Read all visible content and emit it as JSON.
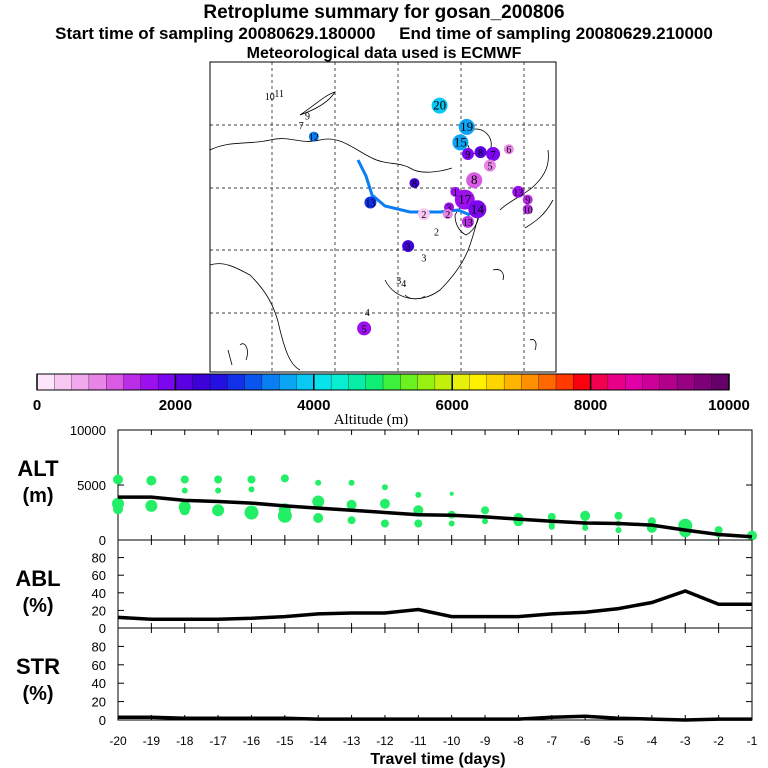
{
  "title": "Retroplume summary for gosan_200806",
  "subtitle_start": "Start time of sampling 20080629.180000",
  "subtitle_end": "End time of sampling 20080629.210000",
  "subtitle2": "Meteorological data used is ECMWF",
  "colorbar": {
    "label": "Altitude (m)",
    "ticks": [
      "0",
      "2000",
      "4000",
      "6000",
      "8000",
      "10000"
    ],
    "colors": [
      "#fde6fb",
      "#f8c8f3",
      "#f2a8ec",
      "#e985e6",
      "#d95be4",
      "#bb2ee8",
      "#9c10ee",
      "#7c06ef",
      "#5a00e3",
      "#3d02d8",
      "#2410e0",
      "#1230e8",
      "#0a55ef",
      "#0a7ff3",
      "#0aa6f5",
      "#0ac8f4",
      "#08e2ec",
      "#07eed0",
      "#08eea6",
      "#0fef75",
      "#3df03b",
      "#6bf020",
      "#98f010",
      "#c2f00a",
      "#e6f00a",
      "#fff000",
      "#ffd500",
      "#ffb400",
      "#ff9000",
      "#ff6800",
      "#ff3a00",
      "#fa0010",
      "#f20050",
      "#ea0088",
      "#e200a8",
      "#cc0098",
      "#b3008c",
      "#980082",
      "#7e0078",
      "#640068"
    ]
  },
  "map_labels": [
    {
      "t": "20",
      "lon": 111.5,
      "lat": 47.5,
      "c": "#0ac8f4",
      "r": 8
    },
    {
      "t": "19",
      "lon": 115.8,
      "lat": 45.3,
      "c": "#0aa6f5",
      "r": 8
    },
    {
      "t": "15",
      "lon": 114.8,
      "lat": 43.7,
      "c": "#0aa6f5",
      "r": 8
    },
    {
      "t": "12",
      "lon": 91.5,
      "lat": 44.3,
      "c": "#0a7ff3",
      "r": 5
    },
    {
      "t": "10",
      "lon": 84.5,
      "lat": 48.5,
      "c": "#ffffff",
      "r": 0
    },
    {
      "t": "11",
      "lon": 86.0,
      "lat": 48.8,
      "c": "#ffffff",
      "r": 0
    },
    {
      "t": "9",
      "lon": 90.5,
      "lat": 46.5,
      "c": "#ffffff",
      "r": 0
    },
    {
      "t": "7",
      "lon": 89.5,
      "lat": 45.5,
      "c": "#ffffff",
      "r": 0
    },
    {
      "t": "8",
      "lon": 107.5,
      "lat": 39.5,
      "c": "#3d02d8",
      "r": 5
    },
    {
      "t": "13",
      "lon": 100.5,
      "lat": 37.5,
      "c": "#1230e8",
      "r": 6
    },
    {
      "t": "2",
      "lon": 109.0,
      "lat": 36.3,
      "c": "#f8c8f3",
      "r": 6
    },
    {
      "t": "3",
      "lon": 106.5,
      "lat": 33.0,
      "c": "#3d02d8",
      "r": 6
    },
    {
      "t": "2",
      "lon": 111.0,
      "lat": 34.5,
      "c": "#ffffff",
      "r": 0
    },
    {
      "t": "3",
      "lon": 109.0,
      "lat": 31.8,
      "c": "#ffffff",
      "r": 0
    },
    {
      "t": "3",
      "lon": 105.0,
      "lat": 29.5,
      "c": "#ffffff",
      "r": 0
    },
    {
      "t": "4",
      "lon": 105.8,
      "lat": 29.2,
      "c": "#ffffff",
      "r": 0
    },
    {
      "t": "4",
      "lon": 100.0,
      "lat": 26.2,
      "c": "#ffffff",
      "r": 0
    },
    {
      "t": "5",
      "lon": 99.5,
      "lat": 24.5,
      "c": "#9c10ee",
      "r": 7
    },
    {
      "t": "9",
      "lon": 116.0,
      "lat": 42.5,
      "c": "#7c06ef",
      "r": 6
    },
    {
      "t": "8",
      "lon": 118.0,
      "lat": 42.7,
      "c": "#5a00e3",
      "r": 6
    },
    {
      "t": "7",
      "lon": 120.0,
      "lat": 42.5,
      "c": "#7c06ef",
      "r": 7
    },
    {
      "t": "6",
      "lon": 122.5,
      "lat": 43.0,
      "c": "#e985e6",
      "r": 5
    },
    {
      "t": "5",
      "lon": 119.5,
      "lat": 41.3,
      "c": "#e985e6",
      "r": 6
    },
    {
      "t": "8",
      "lon": 117.0,
      "lat": 39.8,
      "c": "#d95be4",
      "r": 8
    },
    {
      "t": "17",
      "lon": 115.5,
      "lat": 37.8,
      "c": "#9c10ee",
      "r": 10
    },
    {
      "t": "14",
      "lon": 117.5,
      "lat": 36.8,
      "c": "#7c06ef",
      "r": 9
    },
    {
      "t": "13",
      "lon": 116.0,
      "lat": 35.5,
      "c": "#bb2ee8",
      "r": 6
    },
    {
      "t": "13",
      "lon": 124.0,
      "lat": 38.6,
      "c": "#9c10ee",
      "r": 6
    },
    {
      "t": "9",
      "lon": 125.5,
      "lat": 37.8,
      "c": "#bb2ee8",
      "r": 5
    },
    {
      "t": "10",
      "lon": 125.5,
      "lat": 36.8,
      "c": "#bb2ee8",
      "r": 5
    },
    {
      "t": "3",
      "lon": 113.0,
      "lat": 37.0,
      "c": "#9c10ee",
      "r": 5
    },
    {
      "t": "1",
      "lon": 114.0,
      "lat": 38.6,
      "c": "#9c10ee",
      "r": 5
    },
    {
      "t": "2",
      "lon": 112.8,
      "lat": 36.3,
      "c": "#e985e6",
      "r": 5
    }
  ],
  "chart_data": [
    {
      "type": "scatter",
      "name": "ALT",
      "ylabel_line1": "ALT",
      "ylabel_line2": "(m)",
      "xlabel": "Travel time (days)",
      "xlim": [
        -20,
        -1
      ],
      "ylim": [
        0,
        10000
      ],
      "ytick_labels": [
        "10000",
        "5000",
        "0"
      ],
      "yticks": [
        10000,
        5000,
        0
      ],
      "xtick_values": [
        -20,
        -19,
        -18,
        -17,
        -16,
        -15,
        -14,
        -13,
        -12,
        -11,
        -10,
        -9,
        -8,
        -7,
        -6,
        -5,
        -4,
        -3,
        -2,
        -1
      ],
      "xtick_labels": [
        "-20",
        "-19",
        "-18",
        "-17",
        "-16",
        "-15",
        "-14",
        "-13",
        "-12",
        "-11",
        "-10",
        "-9",
        "-8",
        "-7",
        "-6",
        "-5",
        "-4",
        "-3",
        "-2",
        "-1"
      ],
      "mean_line": {
        "x": [
          -20,
          -19,
          -18,
          -17,
          -16,
          -15,
          -14,
          -13,
          -12,
          -11,
          -10,
          -9,
          -8,
          -7,
          -6,
          -5,
          -4,
          -3,
          -2,
          -1
        ],
        "y": [
          3900,
          3900,
          3600,
          3500,
          3350,
          3100,
          2900,
          2700,
          2500,
          2300,
          2250,
          2100,
          1900,
          1700,
          1550,
          1500,
          1350,
          900,
          500,
          300
        ]
      },
      "points": {
        "color": "#22ee66",
        "x": [
          -20,
          -20,
          -20,
          -19,
          -19,
          -18,
          -18,
          -18,
          -18,
          -17,
          -17,
          -17,
          -16,
          -16,
          -16,
          -15,
          -15,
          -15,
          -14,
          -14,
          -14,
          -13,
          -13,
          -13,
          -12,
          -12,
          -12,
          -11,
          -11,
          -11,
          -10,
          -10,
          -10,
          -9,
          -9,
          -8,
          -8,
          -7,
          -7,
          -7,
          -6,
          -6,
          -6,
          -5,
          -5,
          -5,
          -4,
          -4,
          -3,
          -3,
          -2,
          -2,
          -1
        ],
        "y": [
          5500,
          3300,
          2800,
          5400,
          3100,
          5500,
          4500,
          3000,
          2700,
          5500,
          4500,
          2700,
          5500,
          4600,
          2500,
          5600,
          2800,
          2200,
          5200,
          3500,
          2000,
          5200,
          3200,
          1800,
          4800,
          3300,
          1500,
          4100,
          2700,
          1500,
          4200,
          2300,
          1500,
          2700,
          1700,
          2000,
          1700,
          2100,
          1400,
          1200,
          2200,
          1500,
          1100,
          2200,
          1500,
          900,
          1700,
          1100,
          1300,
          800,
          900,
          500,
          400
        ],
        "r": [
          5,
          6,
          5,
          5,
          6,
          4,
          3,
          6,
          5,
          4,
          3,
          6,
          4,
          3,
          7,
          4,
          6,
          7,
          3,
          6,
          5,
          3,
          5,
          4,
          3,
          5,
          4,
          3,
          5,
          4,
          2,
          4,
          3,
          4,
          3,
          5,
          5,
          4,
          3,
          3,
          5,
          3,
          3,
          4,
          3,
          3,
          4,
          5,
          7,
          6,
          4,
          3,
          5
        ]
      }
    },
    {
      "type": "line",
      "name": "ABL",
      "ylabel_line1": "ABL",
      "ylabel_line2": "(%)",
      "xlim": [
        -20,
        -1
      ],
      "ylim": [
        0,
        100
      ],
      "yticks": [
        0,
        20,
        40,
        60,
        80
      ],
      "ytick_labels": [
        "0",
        "20",
        "40",
        "60",
        "80"
      ],
      "x": [
        -20,
        -19,
        -18,
        -17,
        -16,
        -15,
        -14,
        -13,
        -12,
        -11,
        -10,
        -9,
        -8,
        -7,
        -6,
        -5,
        -4,
        -3,
        -2,
        -1
      ],
      "values": [
        12,
        10,
        10,
        10,
        11,
        13,
        16,
        17,
        17,
        21,
        13,
        13,
        13,
        16,
        18,
        22,
        29,
        42,
        27,
        27
      ]
    },
    {
      "type": "line",
      "name": "STR",
      "ylabel_line1": "STR",
      "ylabel_line2": "(%)",
      "xlim": [
        -20,
        -1
      ],
      "ylim": [
        0,
        100
      ],
      "yticks": [
        0,
        20,
        40,
        60,
        80
      ],
      "ytick_labels": [
        "0",
        "20",
        "40",
        "60",
        "80"
      ],
      "x": [
        -20,
        -19,
        -18,
        -17,
        -16,
        -15,
        -14,
        -13,
        -12,
        -11,
        -10,
        -9,
        -8,
        -7,
        -6,
        -5,
        -4,
        -3,
        -2,
        -1
      ],
      "values": [
        3,
        3,
        2,
        2,
        2,
        2,
        1,
        1,
        1,
        1,
        1,
        1,
        1,
        3,
        4,
        2,
        1,
        0,
        1,
        1
      ]
    }
  ]
}
